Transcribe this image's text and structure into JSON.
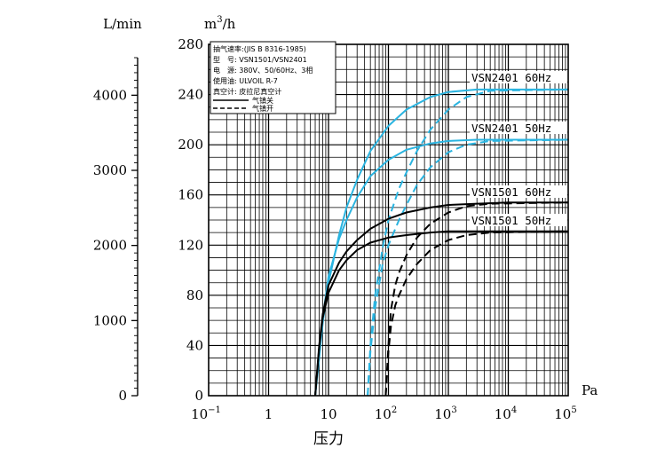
{
  "chart_data": {
    "type": "line",
    "xlabel": "压力",
    "x_unit": "Pa",
    "x_scale": "log",
    "xlim": [
      0.1,
      100000
    ],
    "x_tick_labels": [
      {
        "base": "10",
        "exp": "−1",
        "value": 0.1
      },
      {
        "base": "1",
        "exp": "",
        "value": 1
      },
      {
        "base": "10",
        "exp": "",
        "value": 10
      },
      {
        "base": "10",
        "exp": "2",
        "value": 100
      },
      {
        "base": "10",
        "exp": "3",
        "value": 1000
      },
      {
        "base": "10",
        "exp": "4",
        "value": 10000
      },
      {
        "base": "10",
        "exp": "5",
        "value": 100000
      }
    ],
    "y_unit_base": "m",
    "y_unit_exp": "3",
    "y_unit_tail": "/h",
    "ylim": [
      0,
      280
    ],
    "y_ticks": [
      0,
      40,
      80,
      120,
      160,
      200,
      240,
      280
    ],
    "y2_unit": "L/min",
    "y2_ticks": [
      0,
      1000,
      2000,
      3000,
      4000
    ],
    "legend_box": {
      "lines": [
        "抽气速率:(JIS B 8316-1985)",
        "型　号: VSN1501/VSN2401",
        "电　源: 380V、50/60Hz、3相",
        "使用油: ULVOIL R-7",
        "真空计: 皮拉尼真空计"
      ],
      "solid_label": "气镇关",
      "dashed_label": "气镇开"
    },
    "colors": {
      "vsn2401": "#2ab4e0",
      "vsn1501": "#000000",
      "grid": "#000000"
    },
    "series": [
      {
        "name": "VSN2401 60Hz",
        "ballast": "off",
        "color": "#2ab4e0",
        "x": [
          6,
          7,
          8,
          10,
          15,
          20,
          30,
          50,
          100,
          200,
          500,
          1000,
          3000,
          10000,
          100000
        ],
        "values": [
          0,
          30,
          58,
          90,
          128,
          150,
          172,
          195,
          215,
          228,
          238,
          242,
          244,
          244,
          244
        ]
      },
      {
        "name": "VSN2401 60Hz",
        "ballast": "on",
        "color": "#2ab4e0",
        "x": [
          45,
          50,
          60,
          80,
          100,
          150,
          200,
          300,
          500,
          1000,
          2000,
          5000,
          100000
        ],
        "values": [
          0,
          40,
          80,
          118,
          140,
          165,
          178,
          195,
          212,
          228,
          238,
          243,
          244
        ]
      },
      {
        "name": "VSN2401 50Hz",
        "ballast": "off",
        "color": "#2ab4e0",
        "x": [
          6,
          7,
          8,
          10,
          15,
          20,
          30,
          50,
          100,
          200,
          500,
          1000,
          3000,
          10000,
          100000
        ],
        "values": [
          0,
          35,
          62,
          95,
          125,
          140,
          158,
          175,
          188,
          196,
          201,
          203,
          204,
          204,
          204
        ]
      },
      {
        "name": "VSN2401 50Hz",
        "ballast": "on",
        "color": "#2ab4e0",
        "x": [
          45,
          50,
          60,
          80,
          100,
          150,
          200,
          300,
          500,
          1000,
          2000,
          5000,
          100000
        ],
        "values": [
          0,
          35,
          70,
          105,
          120,
          140,
          152,
          168,
          182,
          194,
          200,
          203,
          204
        ]
      },
      {
        "name": "VSN1501 60Hz",
        "ballast": "off",
        "color": "#000000",
        "x": [
          6,
          7,
          8,
          10,
          15,
          20,
          30,
          50,
          100,
          200,
          500,
          1000,
          3000,
          10000,
          100000
        ],
        "values": [
          0,
          40,
          65,
          88,
          106,
          115,
          124,
          133,
          141,
          146,
          150,
          152,
          153,
          154,
          154
        ]
      },
      {
        "name": "VSN1501 60Hz",
        "ballast": "on",
        "color": "#000000",
        "x": [
          90,
          95,
          100,
          110,
          130,
          150,
          200,
          300,
          500,
          1000,
          2000,
          5000,
          100000
        ],
        "values": [
          0,
          20,
          40,
          68,
          88,
          98,
          112,
          126,
          137,
          146,
          151,
          153,
          154
        ]
      },
      {
        "name": "VSN1501 50Hz",
        "ballast": "off",
        "color": "#000000",
        "x": [
          6,
          7,
          8,
          10,
          15,
          20,
          30,
          50,
          100,
          200,
          500,
          1000,
          3000,
          10000,
          100000
        ],
        "values": [
          0,
          38,
          62,
          82,
          100,
          108,
          116,
          122,
          126,
          128,
          130,
          131,
          131,
          131,
          131
        ]
      },
      {
        "name": "VSN1501 50Hz",
        "ballast": "on",
        "color": "#000000",
        "x": [
          90,
          95,
          100,
          110,
          130,
          150,
          200,
          300,
          500,
          1000,
          2000,
          5000,
          100000
        ],
        "values": [
          0,
          18,
          35,
          55,
          72,
          80,
          93,
          105,
          116,
          124,
          128,
          130,
          131
        ]
      }
    ],
    "annotations": [
      {
        "text": "VSN2401 60Hz",
        "x": 700,
        "y": 252
      },
      {
        "text": "VSN2401 50Hz",
        "x": 700,
        "y": 212
      },
      {
        "text": "VSN1501 60Hz",
        "x": 700,
        "y": 158
      },
      {
        "text": "VSN1501 50Hz",
        "x": 700,
        "y": 137
      }
    ]
  }
}
